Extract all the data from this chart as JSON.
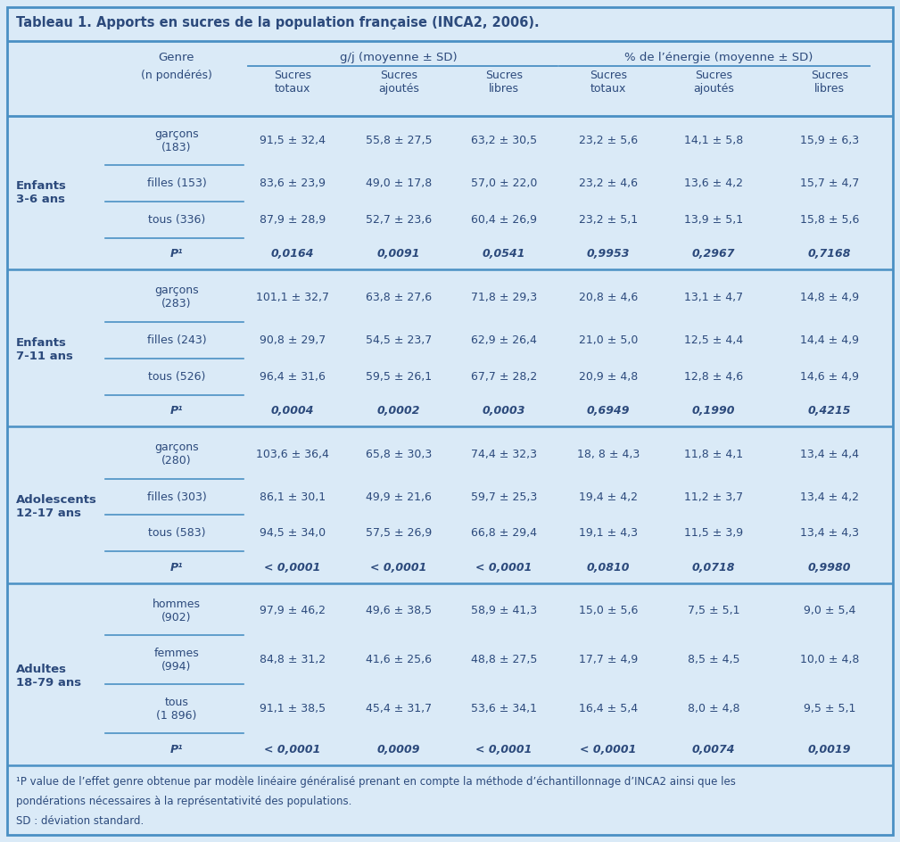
{
  "title": "Tableau 1. Apports en sucres de la population française (INCA2, 2006).",
  "bg_color": "#daeaf7",
  "text_color": "#2c4a7c",
  "line_color": "#4a90c4",
  "footnote1": "¹P value de l’effet genre obtenue par modèle linéaire généralisé prenant en compte la méthode d’échantillonnage d’INCA2 ainsi que les",
  "footnote2": "pondérations nécessaires à la représentativité des populations.",
  "footnote3": "SD : déviation standard.",
  "groups": [
    {
      "label": "Enfants\n3-6 ans",
      "rows": [
        {
          "genre": "garçons\n(183)",
          "vals": [
            "91,5 ± 32,4",
            "55,8 ± 27,5",
            "63,2 ± 30,5",
            "23,2 ± 5,6",
            "14,1 ± 5,8",
            "15,9 ± 6,3"
          ],
          "underline": true,
          "italic": false
        },
        {
          "genre": "filles (153)",
          "vals": [
            "83,6 ± 23,9",
            "49,0 ± 17,8",
            "57,0 ± 22,0",
            "23,2 ± 4,6",
            "13,6 ± 4,2",
            "15,7 ± 4,7"
          ],
          "underline": true,
          "italic": false
        },
        {
          "genre": "tous (336)",
          "vals": [
            "87,9 ± 28,9",
            "52,7 ± 23,6",
            "60,4 ± 26,9",
            "23,2 ± 5,1",
            "13,9 ± 5,1",
            "15,8 ± 5,6"
          ],
          "underline": true,
          "italic": false
        },
        {
          "genre": "P¹",
          "vals": [
            "0,0164",
            "0,0091",
            "0,0541",
            "0,9953",
            "0,2967",
            "0,7168"
          ],
          "underline": false,
          "italic": true
        }
      ]
    },
    {
      "label": "Enfants\n7-11 ans",
      "rows": [
        {
          "genre": "garçons\n(283)",
          "vals": [
            "101,1 ± 32,7",
            "63,8 ± 27,6",
            "71,8 ± 29,3",
            "20,8 ± 4,6",
            "13,1 ± 4,7",
            "14,8 ± 4,9"
          ],
          "underline": true,
          "italic": false
        },
        {
          "genre": "filles (243)",
          "vals": [
            "90,8 ± 29,7",
            "54,5 ± 23,7",
            "62,9 ± 26,4",
            "21,0 ± 5,0",
            "12,5 ± 4,4",
            "14,4 ± 4,9"
          ],
          "underline": true,
          "italic": false
        },
        {
          "genre": "tous (526)",
          "vals": [
            "96,4 ± 31,6",
            "59,5 ± 26,1",
            "67,7 ± 28,2",
            "20,9 ± 4,8",
            "12,8 ± 4,6",
            "14,6 ± 4,9"
          ],
          "underline": true,
          "italic": false
        },
        {
          "genre": "P¹",
          "vals": [
            "0,0004",
            "0,0002",
            "0,0003",
            "0,6949",
            "0,1990",
            "0,4215"
          ],
          "underline": false,
          "italic": true
        }
      ]
    },
    {
      "label": "Adolescents\n12-17 ans",
      "rows": [
        {
          "genre": "garçons\n(280)",
          "vals": [
            "103,6 ± 36,4",
            "65,8 ± 30,3",
            "74,4 ± 32,3",
            "18, 8 ± 4,3",
            "11,8 ± 4,1",
            "13,4 ± 4,4"
          ],
          "underline": true,
          "italic": false
        },
        {
          "genre": "filles (303)",
          "vals": [
            "86,1 ± 30,1",
            "49,9 ± 21,6",
            "59,7 ± 25,3",
            "19,4 ± 4,2",
            "11,2 ± 3,7",
            "13,4 ± 4,2"
          ],
          "underline": true,
          "italic": false
        },
        {
          "genre": "tous (583)",
          "vals": [
            "94,5 ± 34,0",
            "57,5 ± 26,9",
            "66,8 ± 29,4",
            "19,1 ± 4,3",
            "11,5 ± 3,9",
            "13,4 ± 4,3"
          ],
          "underline": true,
          "italic": false
        },
        {
          "genre": "P¹",
          "vals": [
            "< 0,0001",
            "< 0,0001",
            "< 0,0001",
            "0,0810",
            "0,0718",
            "0,9980"
          ],
          "underline": false,
          "italic": true
        }
      ]
    },
    {
      "label": "Adultes\n18-79 ans",
      "rows": [
        {
          "genre": "hommes\n(902)",
          "vals": [
            "97,9 ± 46,2",
            "49,6 ± 38,5",
            "58,9 ± 41,3",
            "15,0 ± 5,6",
            "7,5 ± 5,1",
            "9,0 ± 5,4"
          ],
          "underline": true,
          "italic": false
        },
        {
          "genre": "femmes\n(994)",
          "vals": [
            "84,8 ± 31,2",
            "41,6 ± 25,6",
            "48,8 ± 27,5",
            "17,7 ± 4,9",
            "8,5 ± 4,5",
            "10,0 ± 4,8"
          ],
          "underline": true,
          "italic": false
        },
        {
          "genre": "tous\n(1 896)",
          "vals": [
            "91,1 ± 38,5",
            "45,4 ± 31,7",
            "53,6 ± 34,1",
            "16,4 ± 5,4",
            "8,0 ± 4,8",
            "9,5 ± 5,1"
          ],
          "underline": true,
          "italic": false
        },
        {
          "genre": "P¹",
          "vals": [
            "< 0,0001",
            "0,0009",
            "< 0,0001",
            "< 0,0001",
            "0,0074",
            "0,0019"
          ],
          "underline": false,
          "italic": true
        }
      ]
    }
  ]
}
